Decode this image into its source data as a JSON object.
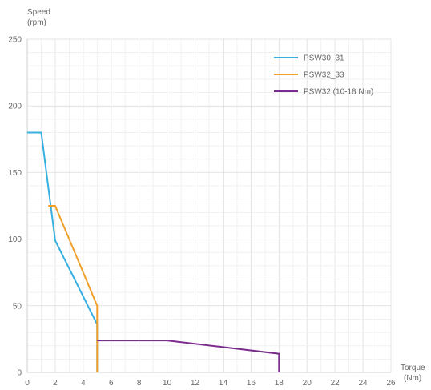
{
  "chart_data": {
    "type": "line",
    "title": "",
    "ylabel_lines": [
      "Speed",
      "(rpm)"
    ],
    "xlabel_lines": [
      "Torque",
      "(Nm)"
    ],
    "xlim": [
      0,
      26
    ],
    "ylim": [
      0,
      250
    ],
    "x_ticks": [
      "0",
      "2",
      "4",
      "6",
      "8",
      "10",
      "12",
      "14",
      "16",
      "18",
      "20",
      "22",
      "24",
      "26"
    ],
    "y_ticks": [
      "0",
      "50",
      "100",
      "150",
      "200",
      "250"
    ],
    "grid": true,
    "legend_position": "top-right",
    "series": [
      {
        "name": "PSW30_31",
        "color": "#35b0e0",
        "points": [
          [
            0,
            180
          ],
          [
            1,
            180
          ],
          [
            2,
            99
          ],
          [
            5,
            36
          ],
          [
            5,
            0
          ]
        ]
      },
      {
        "name": "PSW32_33",
        "color": "#f0a02a",
        "points": [
          [
            1.5,
            125
          ],
          [
            2,
            125
          ],
          [
            5,
            50
          ],
          [
            5,
            0
          ]
        ]
      },
      {
        "name": "PSW32 (10-18 Nm)",
        "color": "#7b2d8e",
        "points": [
          [
            5,
            24
          ],
          [
            10,
            24
          ],
          [
            18,
            14
          ],
          [
            18,
            0
          ]
        ]
      }
    ]
  }
}
